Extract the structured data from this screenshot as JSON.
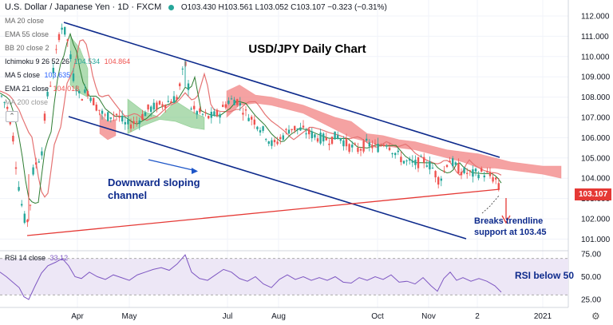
{
  "header": {
    "symbol": "U.S. Dollar / Japanese Yen · 1D · FXCM",
    "ohlc": "O103.430 H103.561 L103.052 C103.107 −0.323 (−0.31%)"
  },
  "indicators": [
    {
      "label": "MA 20 close",
      "value": ""
    },
    {
      "label": "EMA 55 close",
      "value": ""
    },
    {
      "label": "BB 20 close 2",
      "value": ""
    },
    {
      "label": "Ichimoku 9 26 52 26",
      "value": "104.534",
      "value2": "104.864"
    },
    {
      "label": "MA 5 close",
      "value": "103.635"
    },
    {
      "label": "EMA 21 close",
      "value": "104.018"
    },
    {
      "label": "MA 200 close",
      "value": ""
    }
  ],
  "rsi_label": "RSI 14 close",
  "rsi_value": "33.12",
  "current_price": "103.107",
  "colors": {
    "up": "#26a69a",
    "down": "#ef5350",
    "channel": "#0d2a8c",
    "trendline": "#e53935",
    "cloud_bear": "#f28b8b",
    "cloud_bull": "#6fbf73",
    "rsi_line": "#7e57c2",
    "rsi_band": "#ede7f6",
    "price_box": "#e53935",
    "annotation": "#0d2a8c"
  },
  "chart_data": {
    "type": "candlestick",
    "title": "USD/JPY Daily Chart",
    "x_tick_labels": [
      "Apr",
      "May",
      "Jul",
      "Aug",
      "Oct",
      "Nov",
      "2",
      "2021"
    ],
    "y_tick_labels": [
      "112.000",
      "111.000",
      "110.000",
      "109.000",
      "108.000",
      "107.000",
      "106.000",
      "105.000",
      "104.000",
      "103.000",
      "102.000",
      "101.000"
    ],
    "ylim": [
      100.6,
      112.5
    ],
    "rsi_tick_labels": [
      "75.00",
      "50.00",
      "25.00"
    ],
    "rsi_ylim": [
      15,
      78
    ],
    "rsi_levels": [
      70,
      30
    ],
    "annotations": [
      {
        "id": "channel",
        "text": "Downward sloping\nchannel"
      },
      {
        "id": "break",
        "text": "Breaks trendline\nsupport at 103.45"
      },
      {
        "id": "rsi",
        "text": "RSI below 50"
      }
    ],
    "price_path": [
      [
        0,
        108.2
      ],
      [
        10,
        107.4
      ],
      [
        15,
        106.5
      ],
      [
        22,
        104.0
      ],
      [
        30,
        102.0
      ],
      [
        36,
        101.9
      ],
      [
        42,
        104.5
      ],
      [
        52,
        105.2
      ],
      [
        58,
        107.8
      ],
      [
        68,
        109.5
      ],
      [
        76,
        111.6
      ],
      [
        84,
        111.0
      ],
      [
        92,
        109.0
      ],
      [
        100,
        108.0
      ],
      [
        110,
        108.3
      ],
      [
        120,
        107.6
      ],
      [
        132,
        107.0
      ],
      [
        145,
        107.2
      ],
      [
        158,
        106.6
      ],
      [
        172,
        106.8
      ],
      [
        186,
        107.4
      ],
      [
        200,
        107.6
      ],
      [
        212,
        107.8
      ],
      [
        222,
        108.0
      ],
      [
        232,
        109.7
      ],
      [
        240,
        107.4
      ],
      [
        250,
        107.2
      ],
      [
        262,
        107.0
      ],
      [
        275,
        107.2
      ],
      [
        285,
        107.8
      ],
      [
        296,
        107.9
      ],
      [
        308,
        107.2
      ],
      [
        320,
        106.8
      ],
      [
        332,
        106.2
      ],
      [
        342,
        105.6
      ],
      [
        352,
        106.0
      ],
      [
        364,
        106.5
      ],
      [
        376,
        106.4
      ],
      [
        388,
        106.2
      ],
      [
        400,
        106.0
      ],
      [
        412,
        105.9
      ],
      [
        424,
        106.1
      ],
      [
        436,
        105.6
      ],
      [
        448,
        105.4
      ],
      [
        460,
        105.7
      ],
      [
        472,
        105.5
      ],
      [
        484,
        105.8
      ],
      [
        496,
        105.2
      ],
      [
        508,
        104.8
      ],
      [
        520,
        104.7
      ],
      [
        532,
        104.9
      ],
      [
        542,
        104.5
      ],
      [
        550,
        103.9
      ],
      [
        556,
        104.3
      ],
      [
        562,
        105.0
      ],
      [
        570,
        104.6
      ],
      [
        580,
        104.3
      ],
      [
        592,
        104.2
      ],
      [
        604,
        104.3
      ],
      [
        614,
        104.1
      ],
      [
        622,
        103.9
      ],
      [
        628,
        103.1
      ]
    ],
    "rsi_path": [
      [
        0,
        55
      ],
      [
        8,
        50
      ],
      [
        16,
        44
      ],
      [
        24,
        38
      ],
      [
        30,
        28
      ],
      [
        36,
        25
      ],
      [
        44,
        40
      ],
      [
        52,
        54
      ],
      [
        60,
        62
      ],
      [
        70,
        66
      ],
      [
        78,
        70
      ],
      [
        86,
        62
      ],
      [
        94,
        50
      ],
      [
        102,
        48
      ],
      [
        112,
        55
      ],
      [
        122,
        50
      ],
      [
        132,
        47
      ],
      [
        142,
        52
      ],
      [
        152,
        49
      ],
      [
        162,
        46
      ],
      [
        172,
        52
      ],
      [
        182,
        55
      ],
      [
        192,
        58
      ],
      [
        202,
        60
      ],
      [
        212,
        57
      ],
      [
        222,
        64
      ],
      [
        232,
        74
      ],
      [
        240,
        55
      ],
      [
        250,
        48
      ],
      [
        260,
        46
      ],
      [
        270,
        52
      ],
      [
        280,
        58
      ],
      [
        290,
        55
      ],
      [
        300,
        48
      ],
      [
        310,
        45
      ],
      [
        320,
        50
      ],
      [
        330,
        42
      ],
      [
        340,
        38
      ],
      [
        350,
        47
      ],
      [
        360,
        52
      ],
      [
        370,
        47
      ],
      [
        380,
        50
      ],
      [
        390,
        46
      ],
      [
        400,
        49
      ],
      [
        410,
        46
      ],
      [
        420,
        50
      ],
      [
        430,
        44
      ],
      [
        440,
        43
      ],
      [
        450,
        49
      ],
      [
        460,
        46
      ],
      [
        470,
        50
      ],
      [
        480,
        47
      ],
      [
        490,
        52
      ],
      [
        500,
        44
      ],
      [
        510,
        45
      ],
      [
        520,
        42
      ],
      [
        530,
        49
      ],
      [
        540,
        40
      ],
      [
        548,
        34
      ],
      [
        556,
        48
      ],
      [
        564,
        55
      ],
      [
        572,
        46
      ],
      [
        580,
        49
      ],
      [
        590,
        45
      ],
      [
        600,
        48
      ],
      [
        610,
        45
      ],
      [
        620,
        40
      ],
      [
        628,
        33
      ]
    ],
    "cloud_red": [
      [
        284,
        108.3,
        107.0
      ],
      [
        300,
        108.6,
        107.6
      ],
      [
        320,
        108.1,
        107.7
      ],
      [
        340,
        108.0,
        107.6
      ],
      [
        360,
        107.8,
        107.4
      ],
      [
        380,
        107.6,
        107.2
      ],
      [
        400,
        107.3,
        106.8
      ],
      [
        420,
        107.0,
        106.4
      ],
      [
        440,
        106.8,
        106.0
      ],
      [
        460,
        106.2,
        105.8
      ],
      [
        480,
        106.1,
        105.6
      ],
      [
        500,
        105.9,
        105.5
      ],
      [
        520,
        105.8,
        105.4
      ],
      [
        540,
        105.6,
        105.2
      ],
      [
        560,
        105.4,
        105.0
      ],
      [
        580,
        105.3,
        104.8
      ],
      [
        600,
        105.2,
        104.5
      ],
      [
        620,
        105.0,
        104.5
      ],
      [
        640,
        104.8,
        104.4
      ],
      [
        660,
        104.7,
        104.3
      ],
      [
        680,
        104.6,
        104.2
      ],
      [
        703,
        104.6,
        104.0
      ]
    ],
    "cloud_red_early": [
      [
        125,
        107.2,
        106.2
      ],
      [
        135,
        106.8,
        105.9
      ],
      [
        145,
        106.9,
        106.1
      ]
    ],
    "cloud_green": [
      [
        160,
        107.9,
        106.2
      ],
      [
        180,
        107.3,
        106.6
      ],
      [
        200,
        107.0,
        106.9
      ],
      [
        220,
        107.8,
        106.8
      ],
      [
        240,
        107.3,
        106.5
      ],
      [
        256,
        107.0,
        106.4
      ]
    ],
    "cloud_green_early": [
      [
        88,
        111.0,
        108.6
      ],
      [
        100,
        110.4,
        108.2
      ],
      [
        110,
        109.4,
        108.0
      ]
    ]
  }
}
